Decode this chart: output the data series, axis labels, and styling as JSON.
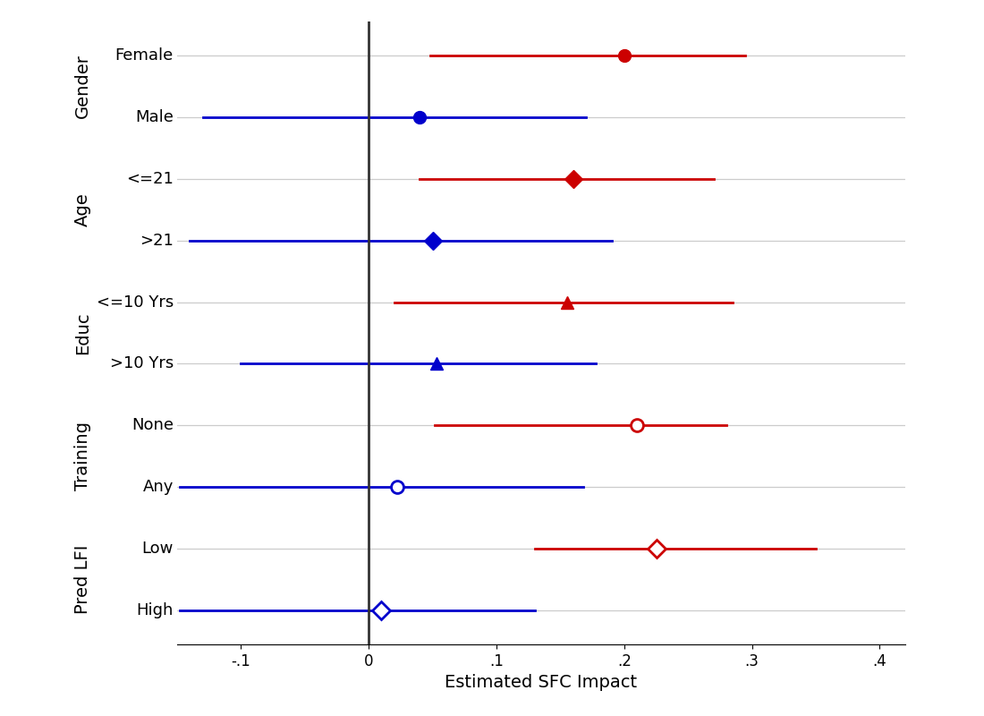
{
  "xlabel": "Estimated SFC Impact",
  "xlim": [
    -0.15,
    0.42
  ],
  "xticks": [
    -0.1,
    0.0,
    0.1,
    0.2,
    0.3,
    0.4
  ],
  "xticklabels": [
    "-.1",
    "0",
    ".1",
    ".2",
    ".3",
    ".4"
  ],
  "background_color": "#ffffff",
  "groups": [
    {
      "label": "Gender",
      "rows": [
        {
          "name": "Female",
          "y": 10,
          "point": 0.2,
          "ci_low": 0.048,
          "ci_high": 0.295,
          "color": "#cc0000",
          "marker": "o",
          "filled": true
        },
        {
          "name": "Male",
          "y": 9,
          "point": 0.04,
          "ci_low": -0.13,
          "ci_high": 0.17,
          "color": "#0000cc",
          "marker": "o",
          "filled": true
        }
      ]
    },
    {
      "label": "Age",
      "rows": [
        {
          "name": "<=21",
          "y": 8,
          "point": 0.16,
          "ci_low": 0.04,
          "ci_high": 0.27,
          "color": "#cc0000",
          "marker": "D",
          "filled": true
        },
        {
          "name": ">21",
          "y": 7,
          "point": 0.05,
          "ci_low": -0.14,
          "ci_high": 0.19,
          "color": "#0000cc",
          "marker": "D",
          "filled": true
        }
      ]
    },
    {
      "label": "Educ",
      "rows": [
        {
          "name": "<=10 Yrs",
          "y": 6,
          "point": 0.155,
          "ci_low": 0.02,
          "ci_high": 0.285,
          "color": "#cc0000",
          "marker": "^",
          "filled": true
        },
        {
          "name": ">10 Yrs",
          "y": 5,
          "point": 0.053,
          "ci_low": -0.1,
          "ci_high": 0.178,
          "color": "#0000cc",
          "marker": "^",
          "filled": true
        }
      ]
    },
    {
      "label": "Training",
      "rows": [
        {
          "name": "None",
          "y": 4,
          "point": 0.21,
          "ci_low": 0.052,
          "ci_high": 0.28,
          "color": "#cc0000",
          "marker": "o",
          "filled": false
        },
        {
          "name": "Any",
          "y": 3,
          "point": 0.022,
          "ci_low": -0.148,
          "ci_high": 0.168,
          "color": "#0000cc",
          "marker": "o",
          "filled": false
        }
      ]
    },
    {
      "label": "Pred LFI",
      "rows": [
        {
          "name": "Low",
          "y": 2,
          "point": 0.225,
          "ci_low": 0.13,
          "ci_high": 0.35,
          "color": "#cc0000",
          "marker": "D",
          "filled": false
        },
        {
          "name": "High",
          "y": 1,
          "point": 0.01,
          "ci_low": -0.148,
          "ci_high": 0.13,
          "color": "#0000cc",
          "marker": "D",
          "filled": false
        }
      ]
    }
  ],
  "vline_x": 0.0,
  "vline_color": "#333333",
  "grid_color": "#cccccc",
  "marker_size": 10,
  "line_width": 2.0,
  "group_label_fontsize": 14,
  "row_label_fontsize": 13,
  "axis_label_fontsize": 14,
  "tick_fontsize": 12
}
